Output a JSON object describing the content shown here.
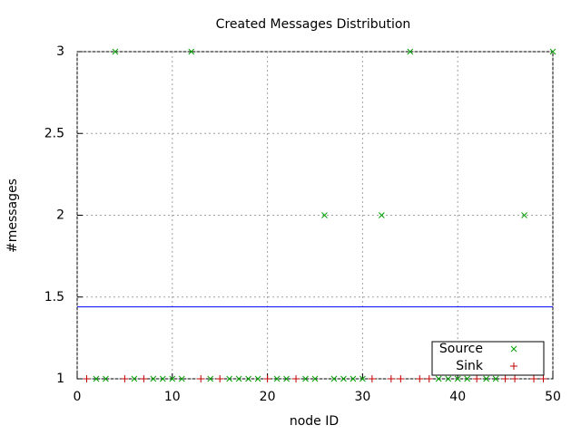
{
  "chart_data": {
    "type": "scatter",
    "title": "Created Messages Distribution",
    "xlabel": "node ID",
    "ylabel": "#messages",
    "xlim": [
      0,
      50
    ],
    "ylim": [
      1,
      3
    ],
    "xticks": [
      0,
      10,
      20,
      30,
      40,
      50
    ],
    "yticks": [
      1,
      1.5,
      2,
      2.5,
      3
    ],
    "grid": true,
    "legend": "lower right",
    "hline": {
      "value": 1.44,
      "color": "#0000ff"
    },
    "series": [
      {
        "name": "Source",
        "color": "#00a000",
        "marker": "x",
        "x": [
          2,
          3,
          4,
          6,
          8,
          9,
          10,
          11,
          12,
          14,
          16,
          17,
          18,
          19,
          21,
          22,
          24,
          25,
          26,
          27,
          28,
          29,
          30,
          32,
          35,
          38,
          39,
          40,
          41,
          43,
          44,
          47,
          50
        ],
        "values": [
          1,
          1,
          3,
          1,
          1,
          1,
          1,
          1,
          3,
          1,
          1,
          1,
          1,
          1,
          1,
          1,
          1,
          1,
          2,
          1,
          1,
          1,
          1,
          2,
          3,
          1,
          1,
          1,
          1,
          1,
          1,
          2,
          3
        ]
      },
      {
        "name": "Sink",
        "color": "#c00000",
        "marker": "+",
        "x": [
          1,
          5,
          7,
          13,
          15,
          20,
          23,
          31,
          33,
          34,
          36,
          37,
          42,
          45,
          46,
          48,
          49
        ],
        "values": [
          1,
          1,
          1,
          1,
          1,
          1,
          1,
          1,
          1,
          1,
          1,
          1,
          1,
          1,
          1,
          1,
          1
        ]
      }
    ]
  }
}
